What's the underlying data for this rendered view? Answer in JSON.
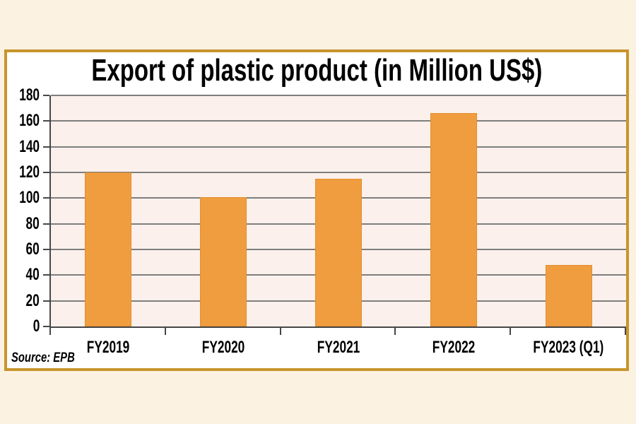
{
  "page": {
    "background": "#FCF2E2"
  },
  "frame": {
    "background": "#FFFFFF",
    "border_color": "#C8952C"
  },
  "chart_data": {
    "type": "bar",
    "title": "Export of plastic product (in Million US$)",
    "source_note": "Source: EPB",
    "categories": [
      "FY2019",
      "FY2020",
      "FY2021",
      "FY2022",
      "FY2023 (Q1)"
    ],
    "values": [
      120,
      101,
      115,
      166,
      48
    ],
    "xlabel": "",
    "ylabel": "",
    "ylim": [
      0,
      180
    ],
    "yticks": [
      0,
      20,
      40,
      60,
      80,
      100,
      120,
      140,
      160,
      180
    ],
    "grid": "horizontal",
    "legend_position": "none",
    "colors": {
      "bar_fill": "#F09D3F",
      "bar_border": "#E28E2E",
      "plot_background": "#FBF0EB",
      "gridline": "#7E7E7E",
      "axis": "#474747",
      "text": "#000000"
    }
  }
}
